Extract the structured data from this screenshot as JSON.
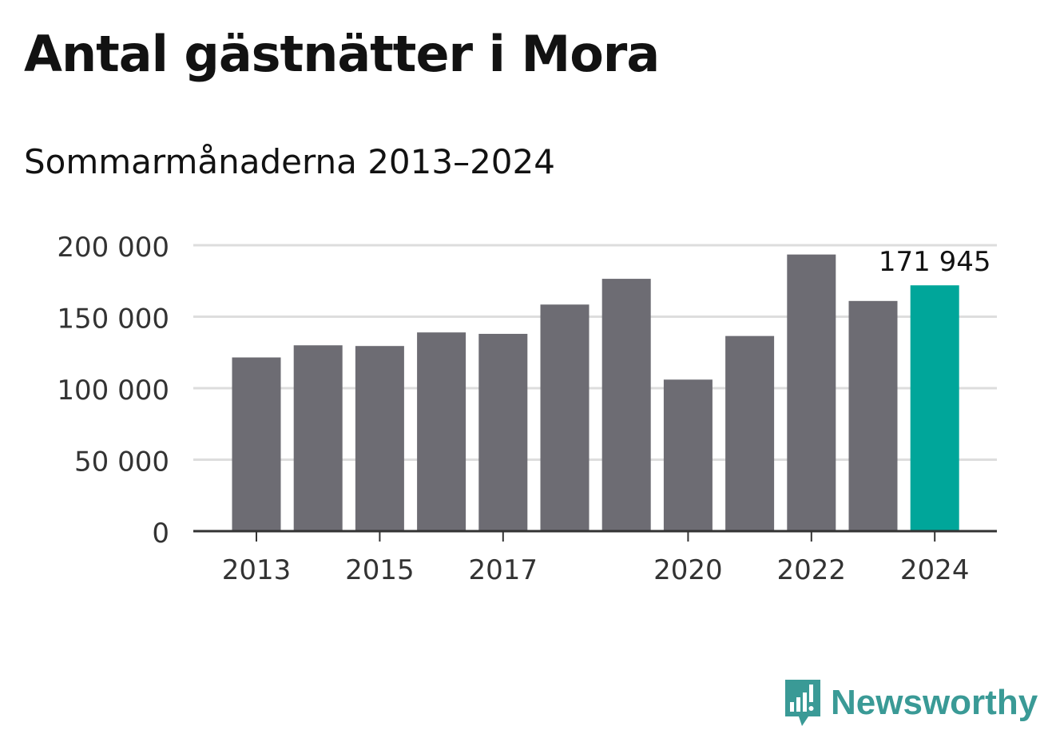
{
  "title": "Antal gästnätter i Mora",
  "subtitle": "Sommarmånaderna 2013–2024",
  "brand": {
    "name": "Newsworthy",
    "logo_icon": "bar-chart-speech-bubble-icon",
    "color": "#3a9a96"
  },
  "colors": {
    "bar": "#6d6c73",
    "highlight": "#00a69a",
    "grid": "#dddddd",
    "axis": "#333333",
    "text": "#333333"
  },
  "chart_data": {
    "type": "bar",
    "categories": [
      "2013",
      "2014",
      "2015",
      "2016",
      "2017",
      "2018",
      "2019",
      "2020",
      "2021",
      "2022",
      "2023",
      "2024"
    ],
    "values": [
      121500,
      130000,
      129500,
      139000,
      138000,
      158500,
      176500,
      106000,
      136500,
      193500,
      161000,
      171945
    ],
    "highlight_index": 11,
    "data_labels": [
      {
        "index": 11,
        "text": "171 945"
      }
    ],
    "x_tick_labels": [
      "2013",
      "2015",
      "2017",
      "2020",
      "2022",
      "2024"
    ],
    "y_ticks": [
      0,
      50000,
      100000,
      150000,
      200000
    ],
    "y_tick_labels": [
      "0",
      "50 000",
      "100 000",
      "150 000",
      "200 000"
    ],
    "ylim": [
      0,
      200000
    ],
    "grid": true,
    "legend": "none",
    "xlabel": "",
    "ylabel": ""
  }
}
